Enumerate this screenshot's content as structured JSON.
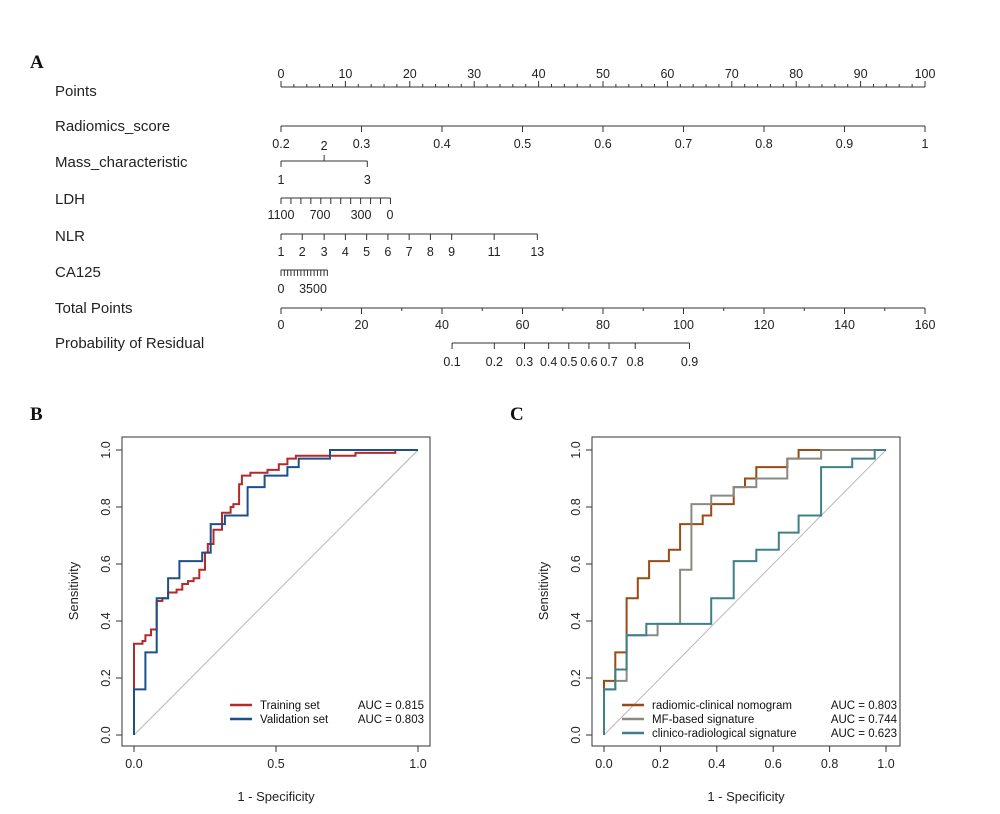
{
  "panels": {
    "a": "A",
    "b": "B",
    "c": "C"
  },
  "colors": {
    "training": "#b22a2a",
    "validation": "#1f4e8c",
    "nomogram": "#9a4a12",
    "mf": "#8a8a82",
    "clinico": "#3f8088",
    "diagonal": "#b8b8b8"
  },
  "chart_data": [
    {
      "type": "nomogram",
      "panel": "A",
      "rows": [
        {
          "name": "Points",
          "min": 0,
          "max": 100,
          "labels": [
            "0",
            "10",
            "20",
            "30",
            "40",
            "50",
            "60",
            "70",
            "80",
            "90",
            "100"
          ],
          "label_values": [
            0,
            10,
            20,
            30,
            40,
            50,
            60,
            70,
            80,
            90,
            100
          ]
        },
        {
          "name": "Radiomics_score",
          "labels": [
            "0.2",
            "0.3",
            "0.4",
            "0.5",
            "0.6",
            "0.7",
            "0.8",
            "0.9",
            "1"
          ],
          "label_values": [
            0.2,
            0.3,
            0.4,
            0.5,
            0.6,
            0.7,
            0.8,
            0.9,
            1.0
          ],
          "points": [
            0,
            12.5,
            25,
            37.5,
            50,
            62.5,
            75,
            87.5,
            100
          ]
        },
        {
          "name": "Mass_characteristic",
          "labels": [
            "1",
            "2",
            "3"
          ],
          "label_values": [
            1,
            2,
            3
          ],
          "points": [
            0,
            6.7,
            13.4
          ]
        },
        {
          "name": "LDH",
          "labels": [
            "1100",
            "700",
            "300",
            "0"
          ],
          "label_values": [
            1100,
            700,
            300,
            0
          ],
          "points": [
            0,
            6.7,
            13.4,
            17
          ]
        },
        {
          "name": "NLR",
          "labels": [
            "1",
            "2",
            "3",
            "4",
            "5",
            "6",
            "7",
            "8",
            "9",
            "11",
            "13"
          ],
          "label_values": [
            1,
            2,
            3,
            4,
            5,
            6,
            7,
            8,
            9,
            11,
            13
          ],
          "points": [
            0,
            3.3,
            6.7,
            10,
            13.3,
            16.6,
            19.9,
            23.2,
            26.5,
            33.1,
            39.8
          ]
        },
        {
          "name": "CA125",
          "labels": [
            "0",
            "3500"
          ],
          "label_values": [
            0,
            3500
          ],
          "points": [
            0,
            7.2
          ]
        },
        {
          "name": "Total Points",
          "labels": [
            "0",
            "20",
            "40",
            "60",
            "80",
            "100",
            "120",
            "140",
            "160"
          ],
          "label_values": [
            0,
            20,
            40,
            60,
            80,
            100,
            120,
            140,
            160
          ]
        },
        {
          "name": "Probability of Residual",
          "labels": [
            "0.1",
            "0.2",
            "0.3",
            "0.4",
            "0.5",
            "0.6",
            "0.7",
            "0.8",
            "0.9"
          ],
          "label_values": [
            0.1,
            0.2,
            0.3,
            0.4,
            0.5,
            0.6,
            0.7,
            0.8,
            0.9
          ],
          "total_points": [
            42.5,
            53,
            60.5,
            66.5,
            71.5,
            76.5,
            81.5,
            88,
            101.5
          ]
        }
      ]
    },
    {
      "type": "line",
      "panel": "B",
      "xlabel": "1 - Specificity",
      "ylabel": "Sensitivity",
      "xlim": [
        0,
        1
      ],
      "ylim": [
        0,
        1
      ],
      "x_ticks": [
        "0.0",
        "0.5",
        "1.0"
      ],
      "y_ticks": [
        "0.0",
        "0.2",
        "0.4",
        "0.6",
        "0.8",
        "1.0"
      ],
      "legend_position": "bottom-right",
      "series": [
        {
          "name": "Training set",
          "auc": "AUC = 0.815",
          "color": "#b22a2a",
          "x": [
            0,
            0,
            0.03,
            0.03,
            0.04,
            0.04,
            0.06,
            0.06,
            0.08,
            0.08,
            0.1,
            0.1,
            0.12,
            0.12,
            0.15,
            0.15,
            0.17,
            0.17,
            0.19,
            0.19,
            0.21,
            0.21,
            0.23,
            0.23,
            0.25,
            0.25,
            0.26,
            0.26,
            0.28,
            0.28,
            0.31,
            0.31,
            0.34,
            0.34,
            0.35,
            0.35,
            0.37,
            0.37,
            0.38,
            0.38,
            0.41,
            0.41,
            0.47,
            0.47,
            0.51,
            0.51,
            0.54,
            0.54,
            0.57,
            0.57,
            0.61,
            0.61,
            0.7,
            0.7,
            0.78,
            0.78,
            0.92,
            0.92,
            1.0
          ],
          "y": [
            0,
            0.32,
            0.32,
            0.33,
            0.33,
            0.35,
            0.35,
            0.37,
            0.37,
            0.47,
            0.47,
            0.48,
            0.48,
            0.5,
            0.5,
            0.51,
            0.51,
            0.53,
            0.53,
            0.54,
            0.54,
            0.55,
            0.55,
            0.58,
            0.58,
            0.64,
            0.64,
            0.67,
            0.67,
            0.72,
            0.72,
            0.78,
            0.78,
            0.8,
            0.8,
            0.81,
            0.81,
            0.88,
            0.88,
            0.91,
            0.91,
            0.92,
            0.92,
            0.93,
            0.93,
            0.95,
            0.95,
            0.97,
            0.97,
            0.98,
            0.98,
            0.98,
            0.98,
            0.98,
            0.98,
            0.99,
            0.99,
            1.0,
            1.0
          ]
        },
        {
          "name": "Validation set",
          "auc": "AUC = 0.803",
          "color": "#1f4e8c",
          "x": [
            0,
            0,
            0.04,
            0.04,
            0.08,
            0.08,
            0.12,
            0.12,
            0.16,
            0.16,
            0.24,
            0.24,
            0.27,
            0.27,
            0.32,
            0.32,
            0.4,
            0.4,
            0.46,
            0.46,
            0.54,
            0.54,
            0.58,
            0.58,
            0.69,
            0.69,
            0.77,
            0.77,
            0.92,
            0.92,
            1.0
          ],
          "y": [
            0,
            0.16,
            0.16,
            0.29,
            0.29,
            0.48,
            0.48,
            0.55,
            0.55,
            0.61,
            0.61,
            0.64,
            0.64,
            0.74,
            0.74,
            0.77,
            0.77,
            0.87,
            0.87,
            0.91,
            0.91,
            0.94,
            0.94,
            0.97,
            0.97,
            1.0,
            1.0,
            1.0,
            1.0,
            1.0,
            1.0
          ]
        }
      ]
    },
    {
      "type": "line",
      "panel": "C",
      "xlabel": "1 - Specificity",
      "ylabel": "Sensitivity",
      "xlim": [
        0,
        1
      ],
      "ylim": [
        0,
        1
      ],
      "x_ticks": [
        "0.0",
        "0.2",
        "0.4",
        "0.6",
        "0.8",
        "1.0"
      ],
      "y_ticks": [
        "0.0",
        "0.2",
        "0.4",
        "0.6",
        "0.8",
        "1.0"
      ],
      "legend_position": "bottom-right",
      "series": [
        {
          "name": "radiomic-clinical nomogram",
          "auc": "AUC = 0.803",
          "color": "#9a4a12",
          "x": [
            0,
            0,
            0.04,
            0.04,
            0.08,
            0.08,
            0.12,
            0.12,
            0.16,
            0.16,
            0.23,
            0.23,
            0.27,
            0.27,
            0.35,
            0.35,
            0.38,
            0.38,
            0.46,
            0.46,
            0.5,
            0.5,
            0.54,
            0.54,
            0.65,
            0.65,
            0.69,
            0.69,
            0.77,
            0.77,
            1.0
          ],
          "y": [
            0,
            0.19,
            0.19,
            0.29,
            0.29,
            0.48,
            0.48,
            0.55,
            0.55,
            0.61,
            0.61,
            0.65,
            0.65,
            0.74,
            0.74,
            0.77,
            0.77,
            0.81,
            0.81,
            0.87,
            0.87,
            0.9,
            0.9,
            0.94,
            0.94,
            0.97,
            0.97,
            1.0,
            1.0,
            1.0,
            1.0
          ]
        },
        {
          "name": "MF-based signature",
          "auc": "AUC = 0.744",
          "color": "#8a8a82",
          "x": [
            0,
            0,
            0.04,
            0.04,
            0.08,
            0.08,
            0.12,
            0.12,
            0.19,
            0.19,
            0.27,
            0.27,
            0.31,
            0.31,
            0.38,
            0.38,
            0.46,
            0.46,
            0.54,
            0.54,
            0.65,
            0.65,
            0.77,
            0.77,
            1.0
          ],
          "y": [
            0,
            0.16,
            0.16,
            0.19,
            0.19,
            0.35,
            0.35,
            0.35,
            0.35,
            0.39,
            0.39,
            0.58,
            0.58,
            0.81,
            0.81,
            0.84,
            0.84,
            0.87,
            0.87,
            0.9,
            0.9,
            0.97,
            0.97,
            1.0,
            1.0
          ]
        },
        {
          "name": "clinico-radiological signature",
          "auc": "AUC = 0.623",
          "color": "#3f8088",
          "x": [
            0,
            0,
            0.04,
            0.04,
            0.08,
            0.08,
            0.15,
            0.15,
            0.38,
            0.38,
            0.46,
            0.46,
            0.54,
            0.54,
            0.62,
            0.62,
            0.69,
            0.69,
            0.77,
            0.77,
            0.88,
            0.88,
            0.96,
            0.96,
            1.0
          ],
          "y": [
            0,
            0.16,
            0.16,
            0.23,
            0.23,
            0.35,
            0.35,
            0.39,
            0.39,
            0.48,
            0.48,
            0.61,
            0.61,
            0.65,
            0.65,
            0.71,
            0.71,
            0.77,
            0.77,
            0.94,
            0.94,
            0.97,
            0.97,
            1.0,
            1.0
          ]
        }
      ]
    }
  ]
}
